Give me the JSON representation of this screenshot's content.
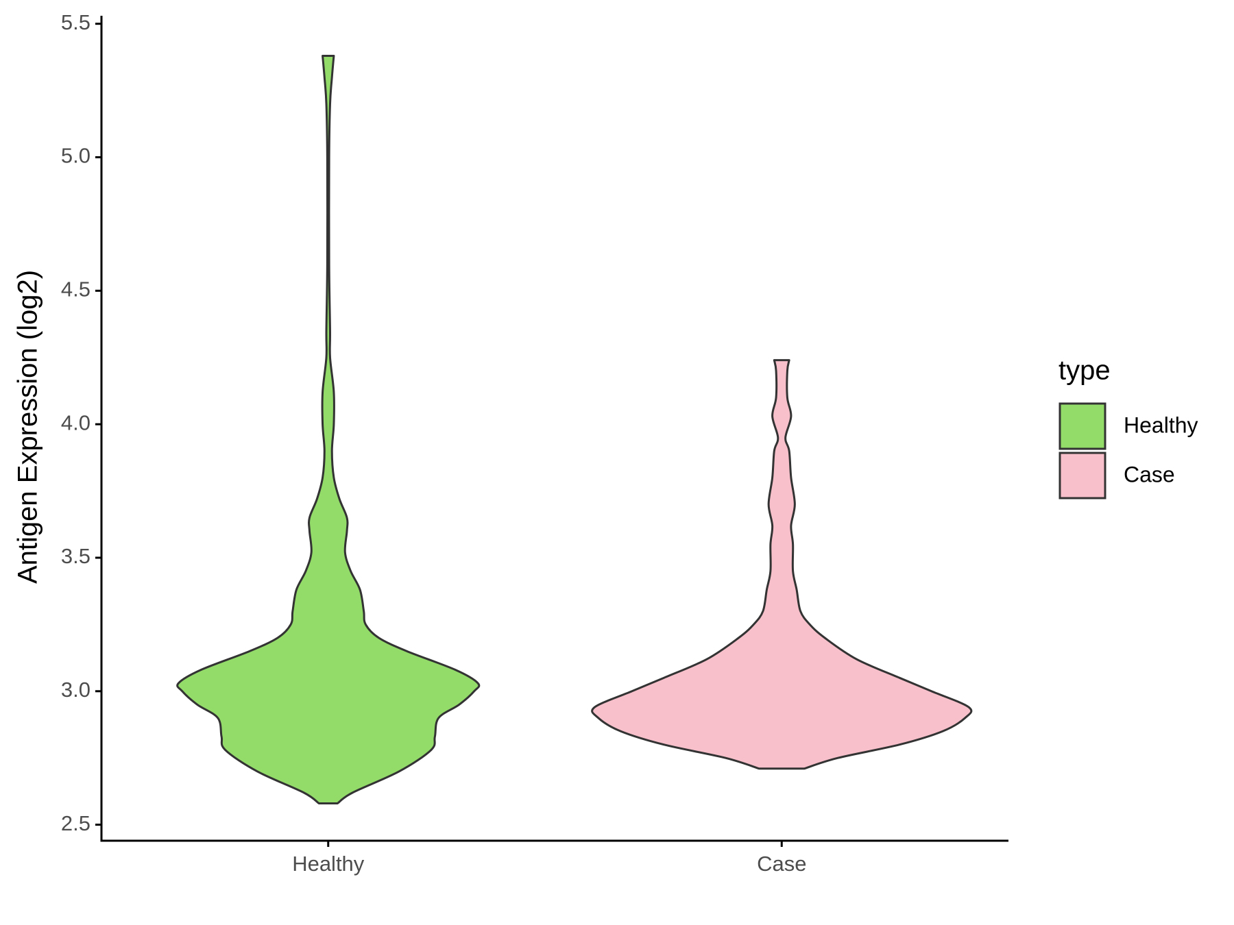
{
  "chart_data": {
    "type": "violin",
    "y_label": "Antigen Expression (log2)",
    "categories": [
      "Healthy",
      "Case"
    ],
    "ylim": [
      2.44,
      5.53
    ],
    "yticks": [
      2.5,
      {
        "value": 3.0,
        "label": "3.0"
      },
      3.5,
      {
        "value": 4.0,
        "label": "4.0"
      },
      4.5,
      {
        "value": 5.0,
        "label": "5.0"
      },
      5.5
    ],
    "legend_title": "type",
    "legend_position": "right",
    "series": [
      {
        "name": "Healthy",
        "color": "#93dc6a",
        "y": [
          2.58,
          2.62,
          2.7,
          2.78,
          2.83,
          2.9,
          2.95,
          3.0,
          3.03,
          3.08,
          3.15,
          3.2,
          3.25,
          3.3,
          3.38,
          3.45,
          3.52,
          3.6,
          3.65,
          3.72,
          3.8,
          3.9,
          4.0,
          4.12,
          4.25,
          4.35,
          4.6,
          5.0,
          5.2,
          5.3,
          5.38
        ],
        "density": [
          0.05,
          0.13,
          0.38,
          0.55,
          0.57,
          0.59,
          0.7,
          0.78,
          0.8,
          0.68,
          0.42,
          0.27,
          0.2,
          0.19,
          0.17,
          0.12,
          0.09,
          0.1,
          0.1,
          0.06,
          0.03,
          0.02,
          0.03,
          0.03,
          0.01,
          0.01,
          0.005,
          0.005,
          0.01,
          0.02,
          0.03
        ]
      },
      {
        "name": "Case",
        "color": "#f8c0cb",
        "y": [
          2.71,
          2.75,
          2.8,
          2.85,
          2.9,
          2.94,
          3.0,
          3.05,
          3.12,
          3.2,
          3.25,
          3.3,
          3.38,
          3.45,
          3.55,
          3.62,
          3.7,
          3.8,
          3.9,
          3.95,
          4.03,
          4.1,
          4.2,
          4.24
        ],
        "density": [
          0.12,
          0.3,
          0.63,
          0.86,
          0.98,
          1.0,
          0.8,
          0.63,
          0.4,
          0.23,
          0.15,
          0.1,
          0.08,
          0.06,
          0.06,
          0.05,
          0.07,
          0.05,
          0.04,
          0.02,
          0.05,
          0.03,
          0.03,
          0.04
        ]
      }
    ]
  }
}
